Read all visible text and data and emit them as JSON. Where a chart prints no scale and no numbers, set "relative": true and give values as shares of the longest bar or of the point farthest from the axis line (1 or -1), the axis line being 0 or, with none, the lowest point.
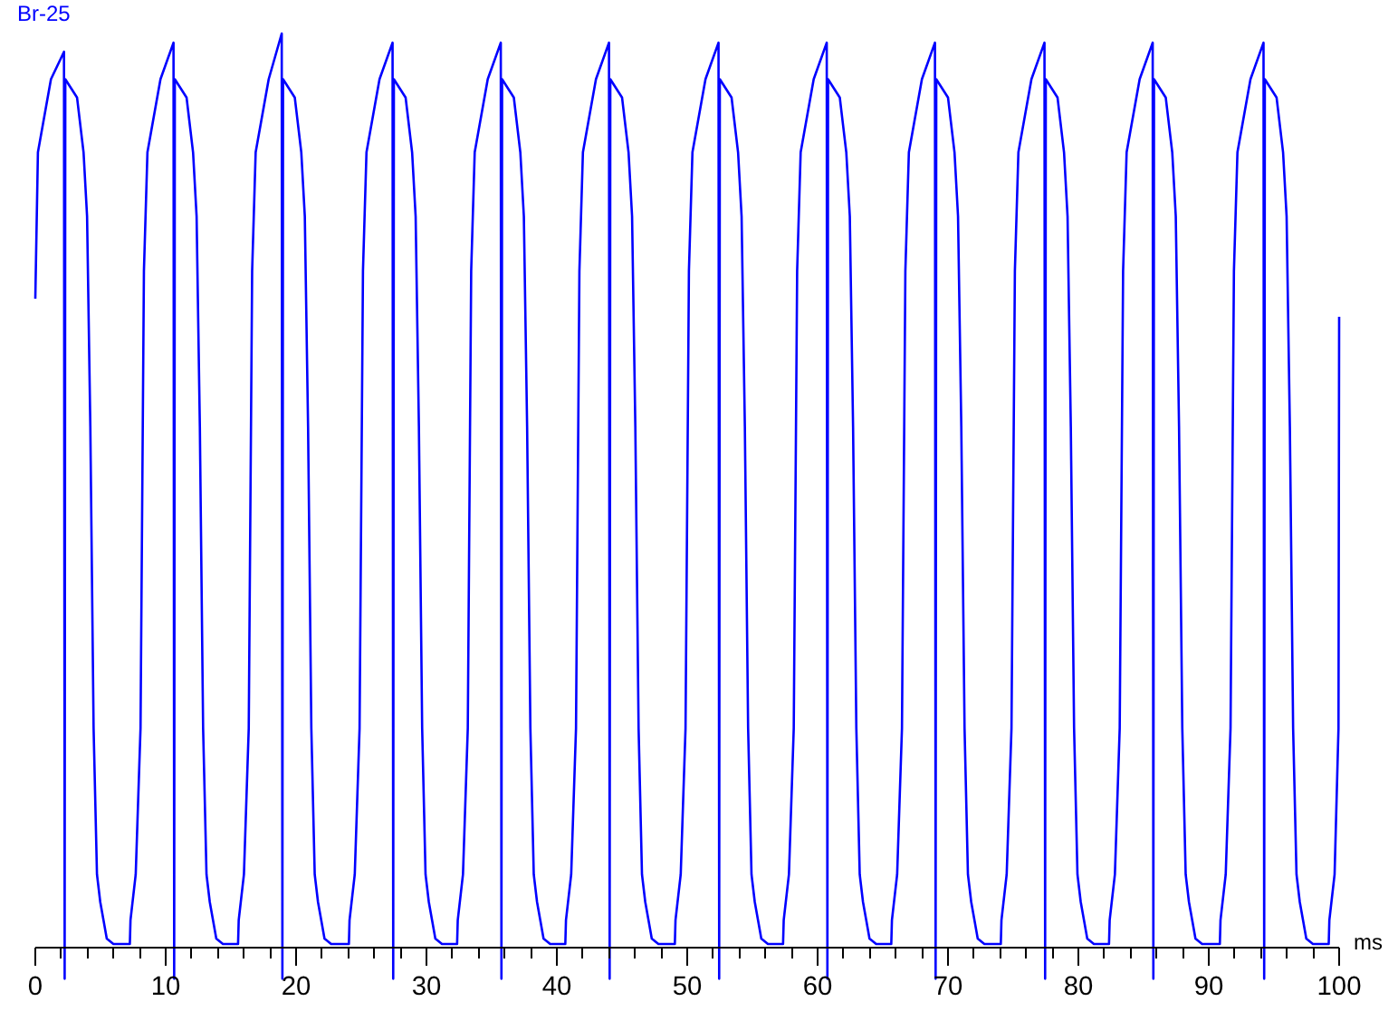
{
  "chart_data": {
    "type": "line",
    "relative": true,
    "xlabel": "ms",
    "xlim": [
      0,
      100
    ],
    "grid": false,
    "legend": false,
    "marker": "none",
    "line_style": "solid",
    "xticks": [
      0,
      {
        "value": 2,
        "label": null
      },
      {
        "value": 4,
        "label": null
      },
      {
        "value": 6,
        "label": null
      },
      {
        "value": 8,
        "label": null
      },
      10,
      {
        "value": 12,
        "label": null
      },
      {
        "value": 14,
        "label": null
      },
      {
        "value": 16,
        "label": null
      },
      {
        "value": 18,
        "label": null
      },
      20,
      {
        "value": 22,
        "label": null
      },
      {
        "value": 24,
        "label": null
      },
      {
        "value": 26,
        "label": null
      },
      {
        "value": 28,
        "label": null
      },
      30,
      {
        "value": 32,
        "label": null
      },
      {
        "value": 34,
        "label": null
      },
      {
        "value": 36,
        "label": null
      },
      {
        "value": 38,
        "label": null
      },
      40,
      {
        "value": 42,
        "label": null
      },
      {
        "value": 44,
        "label": null
      },
      {
        "value": 46,
        "label": null
      },
      {
        "value": 48,
        "label": null
      },
      50,
      {
        "value": 52,
        "label": null
      },
      {
        "value": 54,
        "label": null
      },
      {
        "value": 56,
        "label": null
      },
      {
        "value": 58,
        "label": null
      },
      60,
      {
        "value": 62,
        "label": null
      },
      {
        "value": 64,
        "label": null
      },
      {
        "value": 66,
        "label": null
      },
      {
        "value": 68,
        "label": null
      },
      70,
      {
        "value": 72,
        "label": null
      },
      {
        "value": 74,
        "label": null
      },
      {
        "value": 76,
        "label": null
      },
      {
        "value": 78,
        "label": null
      },
      80,
      {
        "value": 82,
        "label": null
      },
      {
        "value": 84,
        "label": null
      },
      {
        "value": 86,
        "label": null
      },
      {
        "value": 88,
        "label": null
      },
      90,
      {
        "value": 92,
        "label": null
      },
      {
        "value": 94,
        "label": null
      },
      {
        "value": 96,
        "label": null
      },
      {
        "value": 98,
        "label": null
      },
      100
    ],
    "series": [
      {
        "name": "Br-25",
        "color": "#0000ff",
        "x": [
          0,
          0.2,
          1.2,
          2.2,
          2.25,
          2.3,
          3.2,
          3.7,
          3.97,
          4.22,
          4.47,
          4.73,
          4.98,
          5.48,
          5.99,
          7.25,
          7.3,
          7.7,
          8.07,
          8.33,
          8.6,
          9.6,
          10.6,
          10.65,
          10.7,
          11.6,
          12.1,
          12.37,
          12.62,
          12.87,
          13.13,
          13.38,
          13.88,
          14.39,
          15.55,
          15.6,
          16.0,
          16.37,
          16.63,
          16.9,
          17.9,
          18.9,
          18.95,
          19.0,
          19.9,
          20.4,
          20.67,
          20.92,
          21.17,
          21.43,
          21.68,
          22.18,
          22.69,
          24.05,
          24.1,
          24.5,
          24.87,
          25.13,
          25.4,
          26.4,
          27.4,
          27.45,
          27.5,
          28.4,
          28.9,
          29.17,
          29.42,
          29.67,
          29.93,
          30.18,
          30.68,
          31.19,
          32.35,
          32.4,
          32.8,
          33.17,
          33.43,
          33.7,
          34.7,
          35.7,
          35.75,
          35.8,
          36.7,
          37.2,
          37.47,
          37.72,
          37.97,
          38.23,
          38.48,
          38.98,
          39.49,
          40.65,
          40.7,
          41.1,
          41.47,
          41.73,
          42.0,
          43.0,
          44.0,
          44.05,
          44.1,
          45.0,
          45.5,
          45.77,
          46.02,
          46.27,
          46.53,
          46.78,
          47.28,
          47.79,
          49.05,
          49.1,
          49.5,
          49.87,
          50.13,
          50.4,
          51.4,
          52.4,
          52.45,
          52.5,
          53.4,
          53.9,
          54.17,
          54.42,
          54.67,
          54.93,
          55.18,
          55.68,
          56.19,
          57.35,
          57.4,
          57.8,
          58.17,
          58.43,
          58.7,
          59.7,
          60.7,
          60.75,
          60.8,
          61.7,
          62.2,
          62.47,
          62.72,
          62.97,
          63.23,
          63.48,
          63.98,
          64.49,
          65.65,
          65.7,
          66.1,
          66.47,
          66.73,
          67.0,
          68.0,
          69.0,
          69.05,
          69.1,
          70.0,
          70.5,
          70.77,
          71.02,
          71.27,
          71.53,
          71.78,
          72.28,
          72.79,
          74.05,
          74.1,
          74.5,
          74.87,
          75.13,
          75.4,
          76.4,
          77.4,
          77.45,
          77.5,
          78.4,
          78.9,
          79.17,
          79.42,
          79.67,
          79.93,
          80.18,
          80.68,
          81.19,
          82.35,
          82.4,
          82.8,
          83.17,
          83.43,
          83.7,
          84.7,
          85.7,
          85.75,
          85.8,
          86.7,
          87.2,
          87.47,
          87.72,
          87.97,
          88.23,
          88.48,
          88.98,
          89.49,
          90.85,
          90.9,
          91.3,
          91.67,
          91.93,
          92.2,
          93.2,
          94.2,
          94.25,
          94.3,
          95.2,
          95.7,
          95.97,
          96.22,
          96.47,
          96.73,
          96.98,
          97.48,
          97.99,
          99.2,
          99.25,
          99.65,
          99.95,
          100
        ],
        "values": [
          0.71,
          0.87,
          0.95,
          0.98,
          -0.034,
          0.95,
          0.93,
          0.87,
          0.8,
          0.57,
          0.24,
          0.08,
          0.05,
          0.01,
          0.004,
          0.004,
          0.03,
          0.08,
          0.24,
          0.74,
          0.87,
          0.95,
          0.99,
          -0.034,
          0.95,
          0.93,
          0.87,
          0.8,
          0.57,
          0.24,
          0.08,
          0.05,
          0.01,
          0.004,
          0.004,
          0.03,
          0.08,
          0.24,
          0.74,
          0.87,
          0.95,
          1.0,
          -0.034,
          0.95,
          0.93,
          0.87,
          0.8,
          0.57,
          0.24,
          0.08,
          0.05,
          0.01,
          0.004,
          0.004,
          0.03,
          0.08,
          0.24,
          0.74,
          0.87,
          0.95,
          0.99,
          -0.034,
          0.95,
          0.93,
          0.87,
          0.8,
          0.57,
          0.24,
          0.08,
          0.05,
          0.01,
          0.004,
          0.004,
          0.03,
          0.08,
          0.24,
          0.74,
          0.87,
          0.95,
          0.99,
          -0.034,
          0.95,
          0.93,
          0.87,
          0.8,
          0.57,
          0.24,
          0.08,
          0.05,
          0.01,
          0.004,
          0.004,
          0.03,
          0.08,
          0.24,
          0.74,
          0.87,
          0.95,
          0.99,
          -0.034,
          0.95,
          0.93,
          0.87,
          0.8,
          0.57,
          0.24,
          0.08,
          0.05,
          0.01,
          0.004,
          0.004,
          0.03,
          0.08,
          0.24,
          0.74,
          0.87,
          0.95,
          0.99,
          -0.034,
          0.95,
          0.93,
          0.87,
          0.8,
          0.57,
          0.24,
          0.08,
          0.05,
          0.01,
          0.004,
          0.004,
          0.03,
          0.08,
          0.24,
          0.74,
          0.87,
          0.95,
          0.99,
          -0.034,
          0.95,
          0.93,
          0.87,
          0.8,
          0.57,
          0.24,
          0.08,
          0.05,
          0.01,
          0.004,
          0.004,
          0.03,
          0.08,
          0.24,
          0.74,
          0.87,
          0.95,
          0.99,
          -0.034,
          0.95,
          0.93,
          0.87,
          0.8,
          0.57,
          0.24,
          0.08,
          0.05,
          0.01,
          0.004,
          0.004,
          0.03,
          0.08,
          0.24,
          0.74,
          0.87,
          0.95,
          0.99,
          -0.034,
          0.95,
          0.93,
          0.87,
          0.8,
          0.57,
          0.24,
          0.08,
          0.05,
          0.01,
          0.004,
          0.004,
          0.03,
          0.08,
          0.24,
          0.74,
          0.87,
          0.95,
          0.99,
          -0.034,
          0.95,
          0.93,
          0.87,
          0.8,
          0.57,
          0.24,
          0.08,
          0.05,
          0.01,
          0.004,
          0.004,
          0.03,
          0.08,
          0.24,
          0.74,
          0.87,
          0.95,
          0.99,
          -0.034,
          0.95,
          0.93,
          0.87,
          0.8,
          0.57,
          0.24,
          0.08,
          0.05,
          0.01,
          0.004,
          0.004,
          0.03,
          0.08,
          0.24,
          0.69
        ]
      }
    ]
  }
}
